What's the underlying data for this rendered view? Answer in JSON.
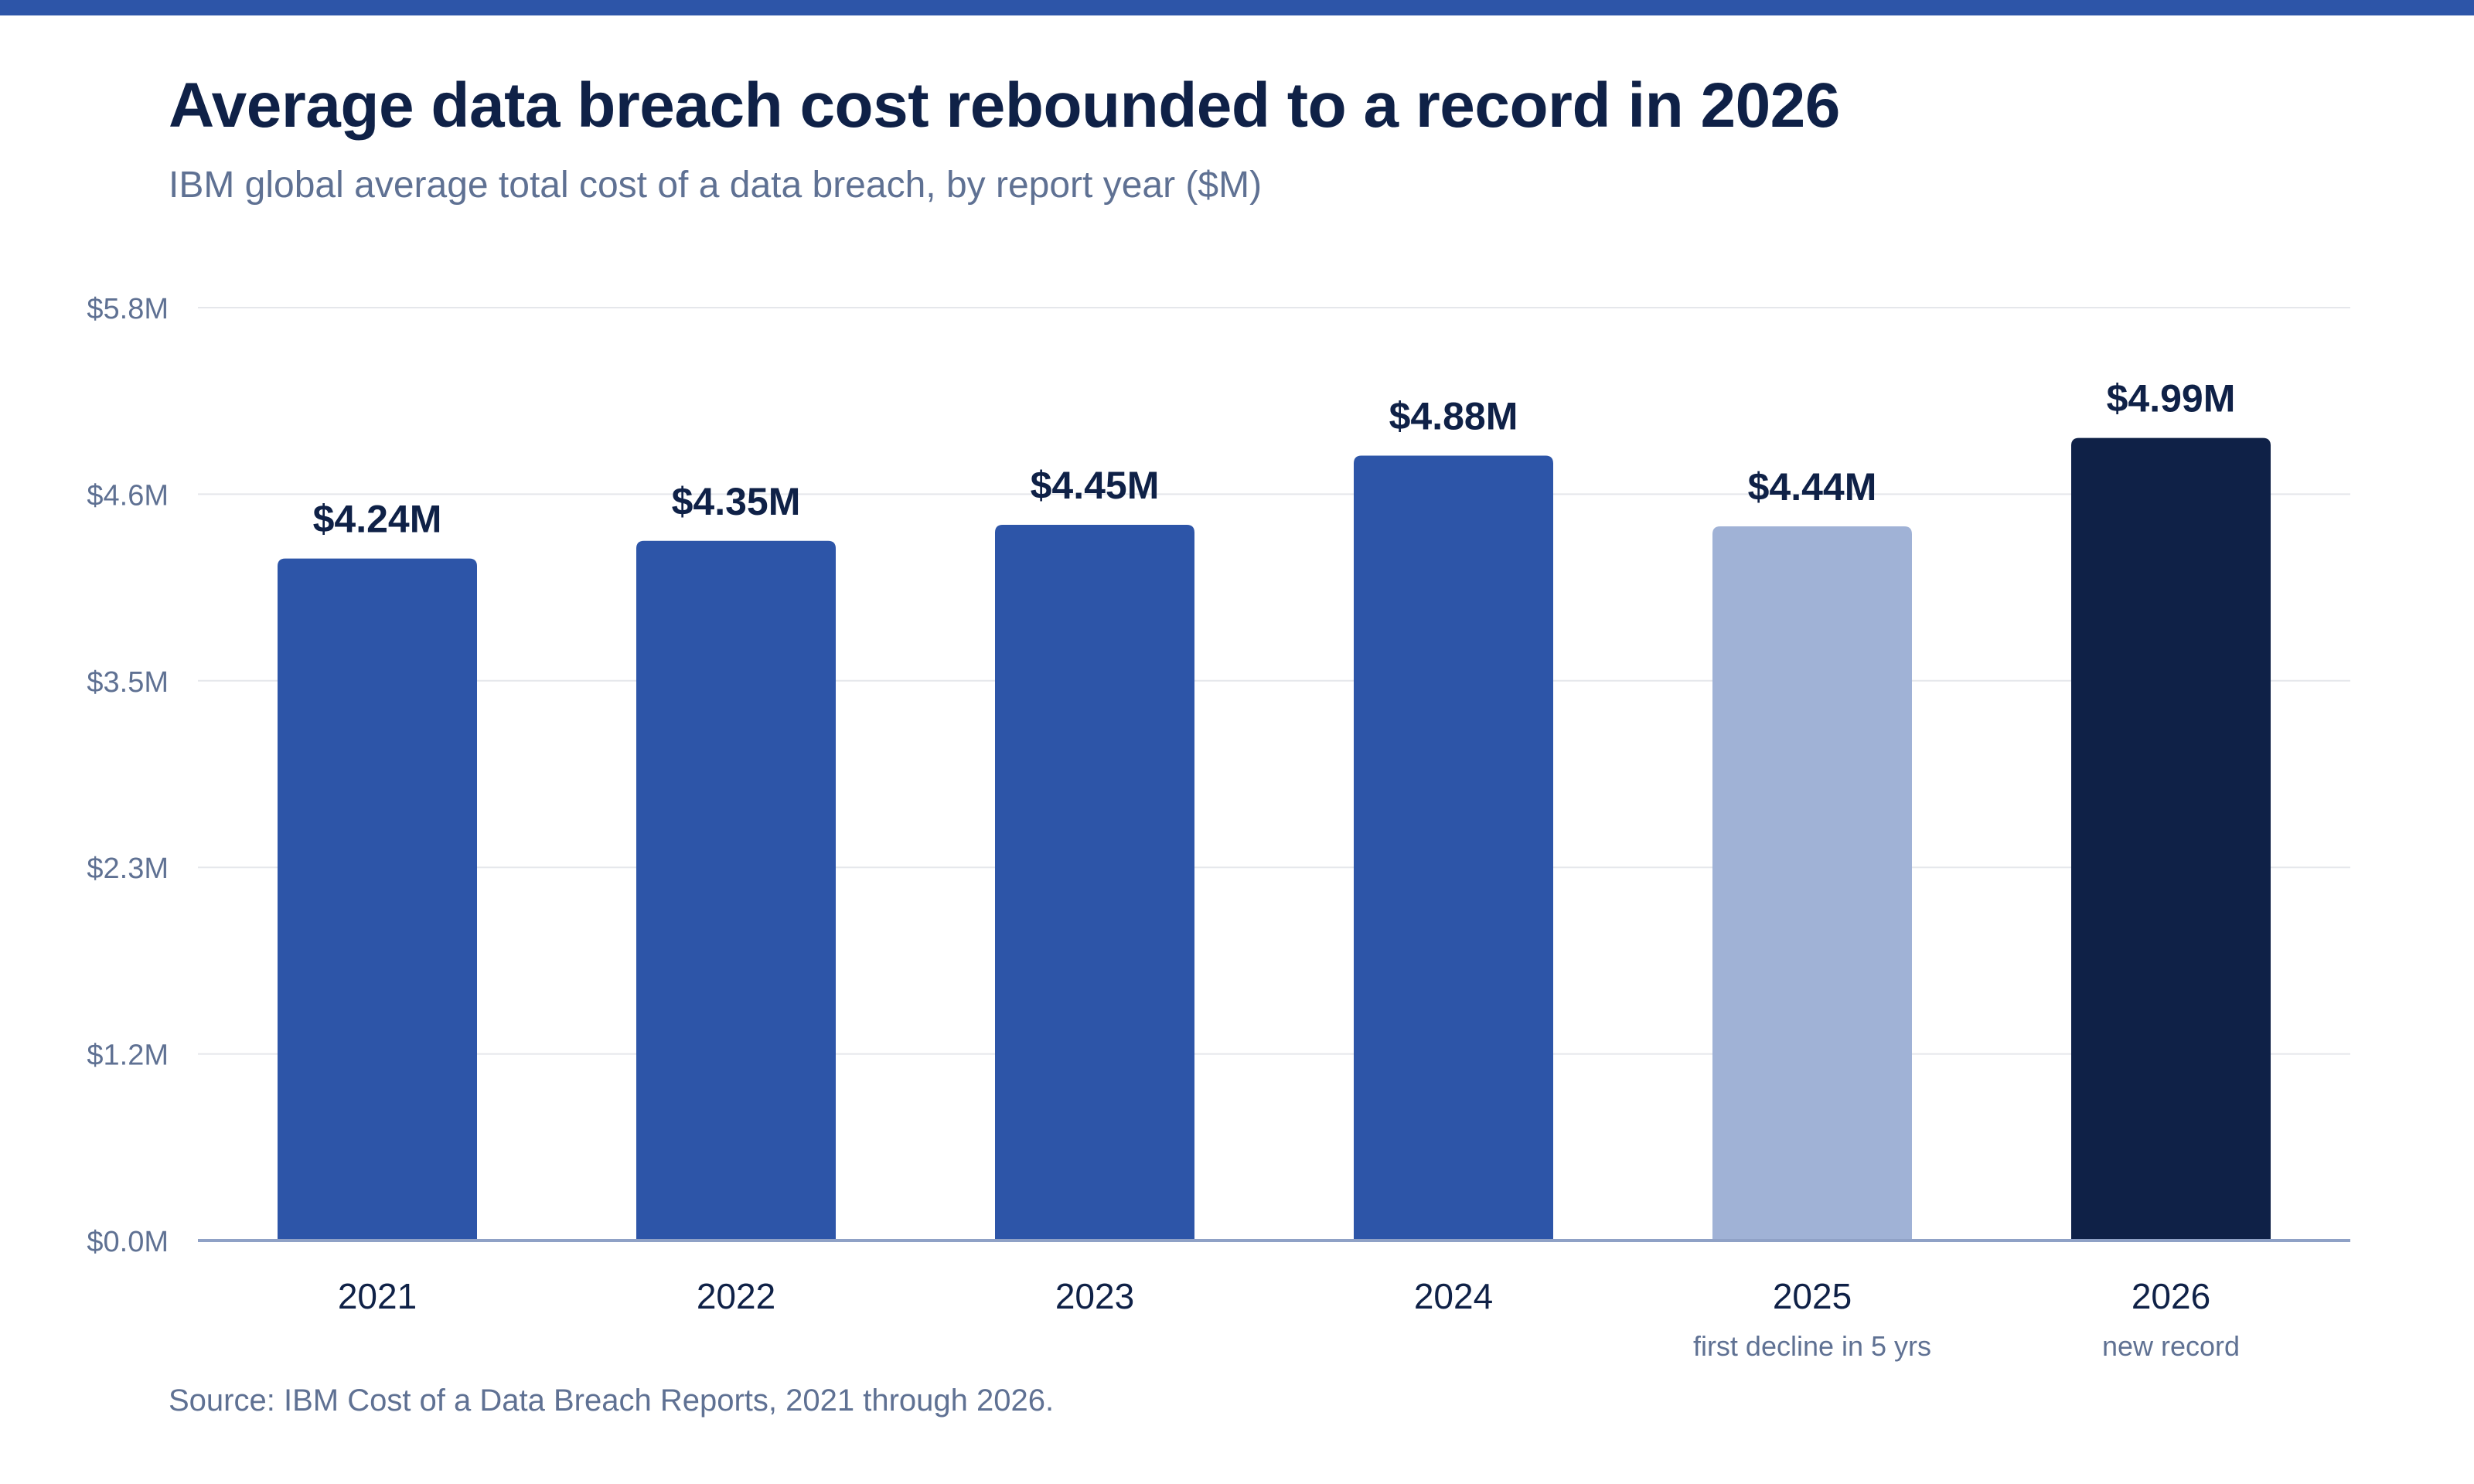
{
  "header": {
    "title": "Average data breach cost rebounded to a record in 2026",
    "subtitle": "IBM global average total cost of a data breach, by report year ($M)"
  },
  "footer": {
    "source": "Source: IBM Cost of a Data Breach Reports, 2021 through 2026."
  },
  "colors": {
    "top_bar": "#2d55a8",
    "bar_default": "#2d55a8",
    "bar_decline": "#a0b2d6",
    "bar_record": "#0f2147",
    "value_label": "#0f2147",
    "axis_label": "#5f7193",
    "grid": "#e5e7eb",
    "baseline": "#8fa1c6"
  },
  "chart_data": {
    "type": "bar",
    "title": "Average data breach cost rebounded to a record in 2026",
    "subtitle": "IBM global average total cost of a data breach, by report year ($M)",
    "categories": [
      "2021",
      "2022",
      "2023",
      "2024",
      "2025",
      "2026"
    ],
    "values": [
      4.24,
      4.35,
      4.45,
      4.88,
      4.44,
      4.99
    ],
    "value_labels": [
      "$4.24M",
      "$4.35M",
      "$4.45M",
      "$4.88M",
      "$4.44M",
      "$4.99M"
    ],
    "category_notes": [
      "",
      "",
      "",
      "",
      "first decline in 5 yrs",
      "new record"
    ],
    "bar_styles": [
      "default",
      "default",
      "default",
      "default",
      "decline",
      "record"
    ],
    "y_ticks": [
      0,
      1.16,
      2.32,
      3.48,
      4.64,
      5.8
    ],
    "y_tick_labels": [
      "$0.0M",
      "$1.2M",
      "$2.3M",
      "$3.5M",
      "$4.6M",
      "$5.8M"
    ],
    "ylim": [
      0,
      5.8
    ],
    "xlabel": "",
    "ylabel": "",
    "grid": true,
    "legend": "none"
  }
}
